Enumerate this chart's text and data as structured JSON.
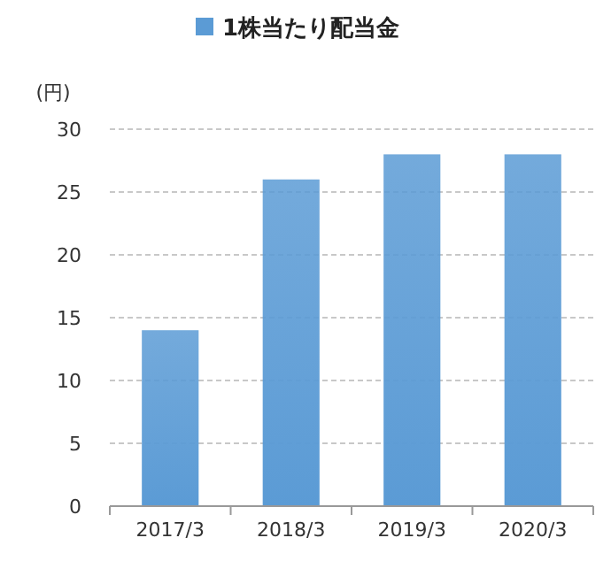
{
  "chart_data": {
    "type": "bar",
    "ylabel": "(円)",
    "categories": [
      "2017/3",
      "2018/3",
      "2019/3",
      "2020/3"
    ],
    "series": [
      {
        "name": "1株当たり配当金",
        "color": "#5b9bd5",
        "values": [
          14,
          26,
          28,
          28
        ]
      }
    ],
    "ylim": [
      0,
      30
    ],
    "yticks": [
      0,
      5,
      10,
      15,
      20,
      25,
      30
    ],
    "grid": "y",
    "legend": "top"
  }
}
